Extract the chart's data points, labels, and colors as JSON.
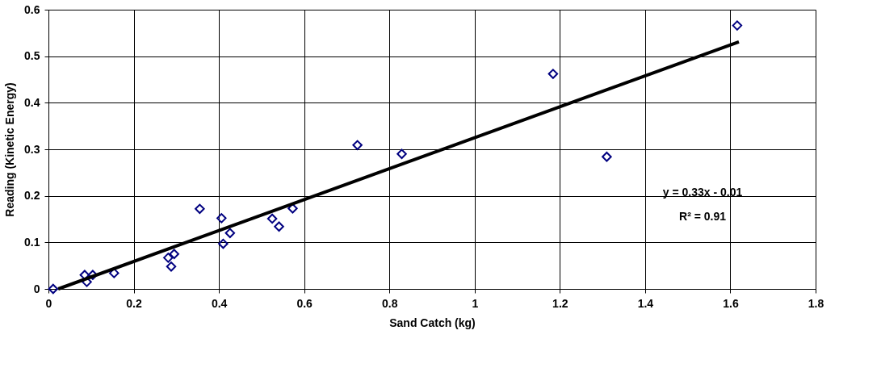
{
  "chart_data": {
    "type": "scatter",
    "xlabel": "Sand Catch (kg)",
    "ylabel": "Reading (Kinetic Energy)",
    "xlim": [
      0,
      1.8
    ],
    "ylim": [
      0,
      0.6
    ],
    "xticks": [
      0,
      0.2,
      0.4,
      0.6,
      0.8,
      1,
      1.2,
      1.4,
      1.6,
      1.8
    ],
    "yticks": [
      0,
      0.1,
      0.2,
      0.3,
      0.4,
      0.5,
      0.6
    ],
    "grid": true,
    "marker": "diamond",
    "series": [
      {
        "color": "#000080",
        "x": [
          0.011,
          0.085,
          0.09,
          0.104,
          0.154,
          0.281,
          0.295,
          0.288,
          0.355,
          0.406,
          0.41,
          0.426,
          0.525,
          0.541,
          0.573,
          0.725,
          0.829,
          1.184,
          1.31,
          1.616
        ],
        "values": [
          0.0,
          0.03,
          0.015,
          0.03,
          0.034,
          0.067,
          0.075,
          0.048,
          0.172,
          0.152,
          0.097,
          0.12,
          0.151,
          0.134,
          0.173,
          0.309,
          0.29,
          0.462,
          0.284,
          0.566
        ]
      },
      {
        "type": "line",
        "marker": "none",
        "color": "#000000",
        "x": [
          0.023,
          1.62
        ],
        "values": [
          0.0,
          0.531
        ]
      }
    ],
    "annotations": [
      "y = 0.33x - 0.01",
      "R² = 0.91"
    ]
  }
}
